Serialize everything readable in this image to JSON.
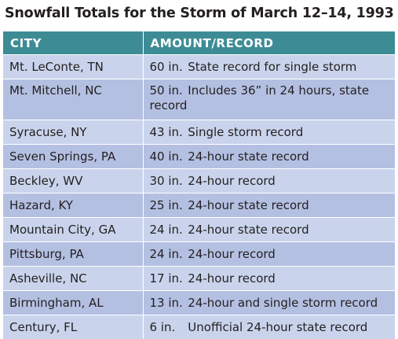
{
  "title": "Snowfall Totals for the Storm of March 12–14, 1993",
  "table": {
    "headers": [
      "CITY",
      "AMOUNT/RECORD"
    ],
    "rows": [
      {
        "city": "Mt. LeConte, TN",
        "amount": "60 in.",
        "record": "State record for single storm"
      },
      {
        "city": "Mt. Mitchell, NC",
        "amount": "50 in.",
        "record": "Includes 36” in 24 hours, state record"
      },
      {
        "city": "Syracuse, NY",
        "amount": "43 in.",
        "record": "Single storm record"
      },
      {
        "city": "Seven Springs, PA",
        "amount": "40 in.",
        "record": "24-hour state record"
      },
      {
        "city": "Beckley, WV",
        "amount": "30 in.",
        "record": "24-hour record"
      },
      {
        "city": "Hazard, KY",
        "amount": "25 in.",
        "record": "24-hour state record"
      },
      {
        "city": "Mountain City, GA",
        "amount": "24 in.",
        "record": "24-hour state record"
      },
      {
        "city": "Pittsburg, PA",
        "amount": "24 in.",
        "record": "24-hour record"
      },
      {
        "city": "Asheville, NC",
        "amount": "17 in.",
        "record": "24-hour record"
      },
      {
        "city": "Birmingham, AL",
        "amount": "13 in.",
        "record": "24-hour and single storm record"
      },
      {
        "city": "Century, FL",
        "amount": "6 in.",
        "record": "Unofficial 24-hour state record"
      }
    ]
  },
  "colors": {
    "header_bg": "#3d8c95",
    "row_light": "#c9d4ec",
    "row_dark": "#b4c0e2"
  }
}
